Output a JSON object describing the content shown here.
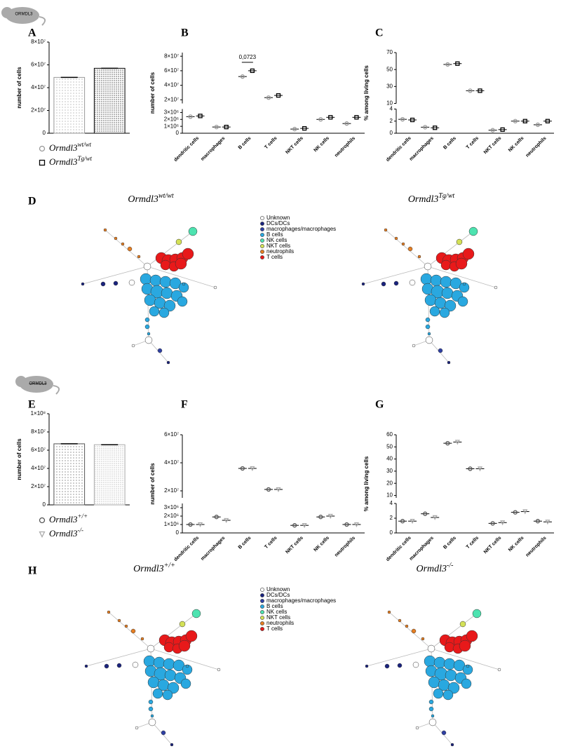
{
  "mouse_labels": [
    "ORMDL3",
    "ORMDL3"
  ],
  "chart_data": [
    {
      "type": "bar",
      "letter": "A",
      "ylabel": "number of cells",
      "ylim": [
        0,
        80000000
      ],
      "yticks": [
        0,
        {
          "value": 20000000,
          "label": "2×10⁷"
        },
        {
          "value": 40000000,
          "label": "4×10⁷"
        },
        {
          "value": 60000000,
          "label": "6×10⁷"
        },
        {
          "value": 80000000,
          "label": "8×10⁷"
        }
      ],
      "series": [
        {
          "name": "Ormdl3",
          "name_sup": "wt/wt",
          "color": "#999999",
          "marker": "circle",
          "values": [
            49000000
          ]
        },
        {
          "name": "Ormdl3",
          "name_sup": "Tg/wt",
          "color": "#000000",
          "marker": "square",
          "values": [
            57000000
          ]
        }
      ]
    },
    {
      "type": "scatter",
      "letter": "B",
      "ylabel": "number of cells",
      "ylim": [
        0,
        85000000
      ],
      "ybreak": [
        3500000,
        15000000
      ],
      "yticks": [
        0,
        {
          "value": 1000000,
          "label": "1×10⁶"
        },
        {
          "value": 2000000,
          "label": "2×10⁶"
        },
        {
          "value": 3000000,
          "label": "3×10⁶"
        },
        {
          "value": 20000000,
          "label": "2×10⁷"
        },
        {
          "value": 40000000,
          "label": "4×10⁷"
        },
        {
          "value": 60000000,
          "label": "6×10⁷"
        },
        {
          "value": 80000000,
          "label": "8×10⁷"
        }
      ],
      "annotation": "0,0723",
      "categories": [
        "dendritic cells",
        "macrophages",
        "B cells",
        "T cells",
        "NKT cells",
        "NK cells",
        "neutrophils"
      ],
      "series": [
        {
          "color": "#999999",
          "marker": "circle",
          "values": [
            2400000,
            900000,
            52000000,
            23000000,
            600000,
            2000000,
            1400000
          ]
        },
        {
          "color": "#000000",
          "marker": "square",
          "values": [
            2500000,
            900000,
            60000000,
            26000000,
            700000,
            2300000,
            2300000
          ]
        }
      ]
    },
    {
      "type": "scatter",
      "letter": "C",
      "ylabel": "% among living cells",
      "ylim": [
        0,
        70
      ],
      "ybreak": [
        4,
        10
      ],
      "yticks": [
        0,
        2,
        4,
        10,
        30,
        50,
        70
      ],
      "categories": [
        "dendritic cells",
        "macrophages",
        "B cells",
        "T cells",
        "NKT cells",
        "NK cells",
        "neutrophils"
      ],
      "series": [
        {
          "color": "#999999",
          "marker": "circle",
          "values": [
            2.3,
            1,
            56,
            25,
            0.5,
            2,
            1.4
          ]
        },
        {
          "color": "#000000",
          "marker": "square",
          "values": [
            2.2,
            0.9,
            57,
            25,
            0.6,
            2,
            2
          ]
        }
      ]
    },
    {
      "type": "bar",
      "letter": "E",
      "ylabel": "number of cells",
      "ylim": [
        0,
        100000000
      ],
      "yticks": [
        0,
        {
          "value": 20000000,
          "label": "2×10⁷"
        },
        {
          "value": 40000000,
          "label": "4×10⁷"
        },
        {
          "value": 60000000,
          "label": "6×10⁷"
        },
        {
          "value": 80000000,
          "label": "8×10⁷"
        },
        {
          "value": 100000000,
          "label": "1×10⁸"
        }
      ],
      "series": [
        {
          "name": "Ormdl3",
          "name_sup": "+/+",
          "color": "#555555",
          "marker": "circle",
          "values": [
            67000000
          ]
        },
        {
          "name": "Ormdl3",
          "name_sup": "-/-",
          "color": "#aaaaaa",
          "marker": "triangle",
          "values": [
            66000000
          ]
        }
      ]
    },
    {
      "type": "scatter",
      "letter": "F",
      "ylabel": "number of cells",
      "ylim": [
        0,
        60000000
      ],
      "ybreak": [
        3500000,
        15000000
      ],
      "yticks": [
        0,
        {
          "value": 1000000,
          "label": "1×10⁶"
        },
        {
          "value": 2000000,
          "label": "2×10⁶"
        },
        {
          "value": 3000000,
          "label": "3×10⁶"
        },
        {
          "value": 20000000,
          "label": "2×10⁷"
        },
        {
          "value": 40000000,
          "label": "4×10⁷"
        },
        {
          "value": 60000000,
          "label": "6×10⁷"
        }
      ],
      "categories": [
        "dendritic cells",
        "macrophages",
        "B cells",
        "T cells",
        "NKT cells",
        "NK cells",
        "neutrophils"
      ],
      "series": [
        {
          "color": "#555555",
          "marker": "circle",
          "values": [
            1000000,
            1900000,
            36000000,
            21000000,
            900000,
            1900000,
            1000000
          ]
        },
        {
          "color": "#aaaaaa",
          "marker": "triangle",
          "values": [
            1000000,
            1500000,
            36000000,
            21000000,
            900000,
            2000000,
            1000000
          ]
        }
      ]
    },
    {
      "type": "scatter",
      "letter": "G",
      "ylabel": "% among living cells",
      "ylim": [
        0,
        60
      ],
      "ybreak": [
        4,
        8
      ],
      "yticks": [
        0,
        2,
        4,
        10,
        20,
        30,
        40,
        50,
        60
      ],
      "categories": [
        "dendritic cells",
        "macrophages",
        "B cells",
        "T cells",
        "NKT cells",
        "NK cells",
        "neutrophils"
      ],
      "series": [
        {
          "color": "#555555",
          "marker": "circle",
          "values": [
            1.6,
            2.6,
            53,
            32,
            1.3,
            2.8,
            1.6
          ]
        },
        {
          "color": "#aaaaaa",
          "marker": "triangle",
          "values": [
            1.6,
            2.1,
            54,
            32,
            1.4,
            2.9,
            1.5
          ]
        }
      ]
    }
  ],
  "trees": [
    {
      "letter": "D",
      "titles": [
        {
          "name": "Ormdl3",
          "sup": "wt/wt"
        },
        {
          "name": "Ormdl3",
          "sup": "Tg/wt"
        }
      ],
      "legend": [
        {
          "name": "Unknown",
          "color": "#ffffff"
        },
        {
          "name": "DCs/DCs",
          "color": "#1a237e"
        },
        {
          "name": "macrophages/macrophages",
          "color": "#2e3fa3"
        },
        {
          "name": "B cells",
          "color": "#29a8e0"
        },
        {
          "name": "NK cells",
          "color": "#4de3b0"
        },
        {
          "name": "NKT cells",
          "color": "#d4e157"
        },
        {
          "name": "neutrophils",
          "color": "#e67e22"
        },
        {
          "name": "T cells",
          "color": "#e8191a"
        }
      ]
    },
    {
      "letter": "H",
      "titles": [
        {
          "name": "Ormdl3",
          "sup": "+/+"
        },
        {
          "name": "Ormdl3",
          "sup": "-/-"
        }
      ],
      "legend": [
        {
          "name": "Unknown",
          "color": "#ffffff"
        },
        {
          "name": "DCs/DCs",
          "color": "#1a237e"
        },
        {
          "name": "macrophages/macrophages",
          "color": "#2e3fa3"
        },
        {
          "name": "B cells",
          "color": "#29a8e0"
        },
        {
          "name": "NK cells",
          "color": "#4de3b0"
        },
        {
          "name": "NKT cells",
          "color": "#d4e157"
        },
        {
          "name": "neutrophils",
          "color": "#e67e22"
        },
        {
          "name": "T cells",
          "color": "#e8191a"
        }
      ]
    }
  ]
}
